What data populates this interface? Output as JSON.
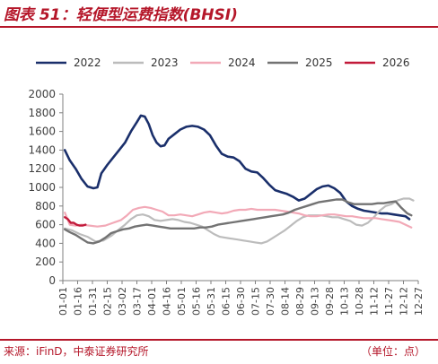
{
  "header": {
    "title": "图表 51：轻便型运费指数(BHSI)"
  },
  "footer": {
    "source": "来源：iFinD，中泰证券研究所",
    "unit": "（单位：点）"
  },
  "chart_data": {
    "type": "line",
    "y_ticks": [
      "0",
      "200",
      "400",
      "600",
      "800",
      "1000",
      "1200",
      "1400",
      "1600",
      "1800",
      "2000"
    ],
    "ylim": [
      0,
      2000
    ],
    "x_ticks": [
      "01-01",
      "01-16",
      "01-31",
      "02-15",
      "03-02",
      "03-17",
      "04-01",
      "04-16",
      "05-01",
      "05-16",
      "05-31",
      "06-15",
      "06-30",
      "07-15",
      "07-30",
      "08-14",
      "08-29",
      "09-13",
      "09-28",
      "10-13",
      "10-28",
      "11-12",
      "11-27",
      "12-12",
      "12-27"
    ],
    "xlim": [
      1,
      361
    ],
    "grid": false,
    "legend_position": "top",
    "series": [
      {
        "name": "2022",
        "color": "#1a2f6b",
        "width": 2.6,
        "points": [
          [
            3,
            1400
          ],
          [
            8,
            1290
          ],
          [
            14,
            1200
          ],
          [
            20,
            1090
          ],
          [
            26,
            1010
          ],
          [
            32,
            990
          ],
          [
            36,
            1000
          ],
          [
            40,
            1150
          ],
          [
            46,
            1240
          ],
          [
            52,
            1320
          ],
          [
            58,
            1400
          ],
          [
            64,
            1480
          ],
          [
            70,
            1600
          ],
          [
            76,
            1700
          ],
          [
            80,
            1770
          ],
          [
            84,
            1760
          ],
          [
            88,
            1680
          ],
          [
            92,
            1560
          ],
          [
            96,
            1480
          ],
          [
            100,
            1440
          ],
          [
            104,
            1450
          ],
          [
            108,
            1520
          ],
          [
            114,
            1570
          ],
          [
            120,
            1620
          ],
          [
            126,
            1650
          ],
          [
            132,
            1660
          ],
          [
            138,
            1650
          ],
          [
            144,
            1620
          ],
          [
            150,
            1560
          ],
          [
            156,
            1450
          ],
          [
            162,
            1360
          ],
          [
            168,
            1330
          ],
          [
            174,
            1320
          ],
          [
            180,
            1280
          ],
          [
            186,
            1200
          ],
          [
            192,
            1170
          ],
          [
            198,
            1160
          ],
          [
            204,
            1100
          ],
          [
            210,
            1030
          ],
          [
            216,
            970
          ],
          [
            222,
            950
          ],
          [
            228,
            930
          ],
          [
            234,
            900
          ],
          [
            240,
            860
          ],
          [
            246,
            880
          ],
          [
            252,
            930
          ],
          [
            258,
            980
          ],
          [
            264,
            1010
          ],
          [
            270,
            1020
          ],
          [
            276,
            990
          ],
          [
            282,
            940
          ],
          [
            288,
            850
          ],
          [
            294,
            800
          ],
          [
            300,
            770
          ],
          [
            306,
            750
          ],
          [
            312,
            740
          ],
          [
            318,
            730
          ],
          [
            324,
            720
          ],
          [
            330,
            720
          ],
          [
            336,
            710
          ],
          [
            342,
            700
          ],
          [
            348,
            690
          ],
          [
            352,
            660
          ]
        ]
      },
      {
        "name": "2023",
        "color": "#bcbcbc",
        "width": 2.2,
        "points": [
          [
            3,
            560
          ],
          [
            10,
            540
          ],
          [
            18,
            500
          ],
          [
            26,
            470
          ],
          [
            34,
            420
          ],
          [
            42,
            430
          ],
          [
            50,
            480
          ],
          [
            58,
            550
          ],
          [
            64,
            600
          ],
          [
            70,
            660
          ],
          [
            76,
            700
          ],
          [
            82,
            710
          ],
          [
            88,
            690
          ],
          [
            94,
            650
          ],
          [
            100,
            640
          ],
          [
            106,
            650
          ],
          [
            112,
            660
          ],
          [
            118,
            650
          ],
          [
            124,
            630
          ],
          [
            130,
            620
          ],
          [
            136,
            600
          ],
          [
            142,
            580
          ],
          [
            148,
            540
          ],
          [
            154,
            500
          ],
          [
            160,
            470
          ],
          [
            166,
            460
          ],
          [
            172,
            450
          ],
          [
            178,
            440
          ],
          [
            184,
            430
          ],
          [
            190,
            420
          ],
          [
            196,
            410
          ],
          [
            202,
            400
          ],
          [
            208,
            420
          ],
          [
            214,
            460
          ],
          [
            220,
            500
          ],
          [
            226,
            540
          ],
          [
            232,
            590
          ],
          [
            238,
            640
          ],
          [
            244,
            680
          ],
          [
            250,
            700
          ],
          [
            256,
            700
          ],
          [
            262,
            700
          ],
          [
            268,
            690
          ],
          [
            274,
            680
          ],
          [
            280,
            680
          ],
          [
            286,
            660
          ],
          [
            292,
            640
          ],
          [
            298,
            600
          ],
          [
            304,
            590
          ],
          [
            310,
            620
          ],
          [
            316,
            680
          ],
          [
            322,
            750
          ],
          [
            328,
            800
          ],
          [
            334,
            820
          ],
          [
            340,
            860
          ],
          [
            346,
            880
          ],
          [
            352,
            880
          ],
          [
            356,
            860
          ]
        ]
      },
      {
        "name": "2024",
        "color": "#f2a9b7",
        "width": 2.2,
        "points": [
          [
            3,
            730
          ],
          [
            8,
            600
          ],
          [
            14,
            590
          ],
          [
            20,
            600
          ],
          [
            28,
            590
          ],
          [
            36,
            580
          ],
          [
            44,
            590
          ],
          [
            52,
            620
          ],
          [
            60,
            650
          ],
          [
            66,
            700
          ],
          [
            72,
            760
          ],
          [
            78,
            780
          ],
          [
            84,
            790
          ],
          [
            90,
            780
          ],
          [
            96,
            760
          ],
          [
            102,
            740
          ],
          [
            108,
            700
          ],
          [
            114,
            700
          ],
          [
            120,
            710
          ],
          [
            126,
            700
          ],
          [
            132,
            690
          ],
          [
            138,
            710
          ],
          [
            144,
            730
          ],
          [
            150,
            740
          ],
          [
            156,
            730
          ],
          [
            162,
            720
          ],
          [
            168,
            730
          ],
          [
            174,
            750
          ],
          [
            180,
            760
          ],
          [
            186,
            760
          ],
          [
            192,
            770
          ],
          [
            198,
            760
          ],
          [
            204,
            760
          ],
          [
            210,
            760
          ],
          [
            216,
            760
          ],
          [
            222,
            750
          ],
          [
            228,
            740
          ],
          [
            234,
            730
          ],
          [
            240,
            720
          ],
          [
            246,
            700
          ],
          [
            252,
            690
          ],
          [
            258,
            690
          ],
          [
            264,
            700
          ],
          [
            270,
            710
          ],
          [
            276,
            710
          ],
          [
            282,
            700
          ],
          [
            288,
            690
          ],
          [
            294,
            690
          ],
          [
            300,
            680
          ],
          [
            306,
            670
          ],
          [
            312,
            670
          ],
          [
            318,
            670
          ],
          [
            324,
            660
          ],
          [
            330,
            650
          ],
          [
            336,
            640
          ],
          [
            342,
            630
          ],
          [
            348,
            600
          ],
          [
            354,
            570
          ]
        ]
      },
      {
        "name": "2025",
        "color": "#737373",
        "width": 2.4,
        "points": [
          [
            3,
            550
          ],
          [
            8,
            520
          ],
          [
            14,
            490
          ],
          [
            20,
            450
          ],
          [
            26,
            410
          ],
          [
            32,
            400
          ],
          [
            38,
            420
          ],
          [
            44,
            460
          ],
          [
            50,
            510
          ],
          [
            56,
            530
          ],
          [
            62,
            550
          ],
          [
            68,
            560
          ],
          [
            74,
            580
          ],
          [
            80,
            590
          ],
          [
            86,
            600
          ],
          [
            92,
            590
          ],
          [
            98,
            580
          ],
          [
            104,
            570
          ],
          [
            110,
            560
          ],
          [
            116,
            560
          ],
          [
            122,
            560
          ],
          [
            128,
            560
          ],
          [
            134,
            560
          ],
          [
            140,
            570
          ],
          [
            146,
            570
          ],
          [
            152,
            580
          ],
          [
            158,
            600
          ],
          [
            164,
            610
          ],
          [
            170,
            620
          ],
          [
            176,
            630
          ],
          [
            182,
            640
          ],
          [
            188,
            650
          ],
          [
            194,
            660
          ],
          [
            200,
            670
          ],
          [
            206,
            680
          ],
          [
            212,
            690
          ],
          [
            218,
            700
          ],
          [
            224,
            710
          ],
          [
            230,
            730
          ],
          [
            236,
            760
          ],
          [
            242,
            780
          ],
          [
            248,
            800
          ],
          [
            254,
            820
          ],
          [
            260,
            840
          ],
          [
            266,
            850
          ],
          [
            272,
            860
          ],
          [
            278,
            870
          ],
          [
            284,
            870
          ],
          [
            290,
            840
          ],
          [
            296,
            820
          ],
          [
            302,
            820
          ],
          [
            308,
            820
          ],
          [
            314,
            820
          ],
          [
            320,
            830
          ],
          [
            326,
            830
          ],
          [
            332,
            840
          ],
          [
            338,
            850
          ],
          [
            344,
            780
          ],
          [
            350,
            720
          ],
          [
            354,
            700
          ]
        ]
      },
      {
        "name": "2026",
        "color": "#c21a3a",
        "width": 2.4,
        "points": [
          [
            3,
            680
          ],
          [
            6,
            660
          ],
          [
            9,
            620
          ],
          [
            12,
            620
          ],
          [
            15,
            600
          ],
          [
            18,
            590
          ],
          [
            21,
            590
          ],
          [
            24,
            600
          ]
        ]
      }
    ]
  }
}
